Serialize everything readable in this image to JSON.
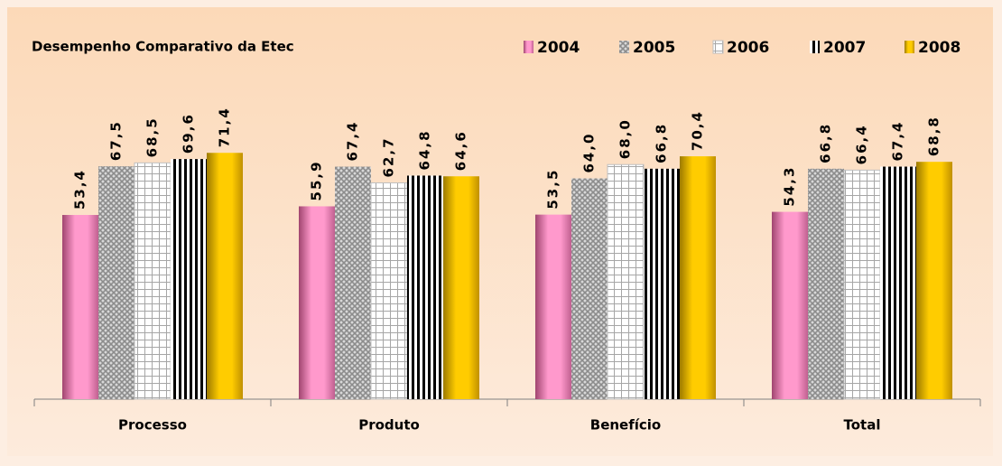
{
  "chart_data": {
    "type": "bar",
    "title": "Desempenho Comparativo da Etec",
    "categories": [
      "Processo",
      "Produto",
      "Benefício",
      "Total"
    ],
    "series": [
      {
        "name": "2004",
        "color": "#ff99cc",
        "values": [
          53.4,
          55.9,
          53.5,
          54.3
        ],
        "value_labels": [
          "53,4",
          "55,9",
          "53,5",
          "54,3"
        ]
      },
      {
        "name": "2005",
        "color": "#8c8c8c",
        "values": [
          67.5,
          67.4,
          64.0,
          66.8
        ],
        "value_labels": [
          "67,5",
          "67,4",
          "64,0",
          "66,8"
        ]
      },
      {
        "name": "2006",
        "color": "#a6a6a6",
        "values": [
          68.5,
          62.7,
          68.0,
          66.4
        ],
        "value_labels": [
          "68,5",
          "62,7",
          "68,0",
          "66,4"
        ]
      },
      {
        "name": "2007",
        "color": "#000000",
        "values": [
          69.6,
          64.8,
          66.8,
          67.4
        ],
        "value_labels": [
          "69,6",
          "64,8",
          "66,8",
          "67,4"
        ]
      },
      {
        "name": "2008",
        "color": "#ffcc00",
        "values": [
          71.4,
          64.6,
          70.4,
          68.8
        ],
        "value_labels": [
          "71,4",
          "64,6",
          "70,4",
          "68,8"
        ]
      }
    ],
    "ylim": [
      0,
      100
    ]
  }
}
